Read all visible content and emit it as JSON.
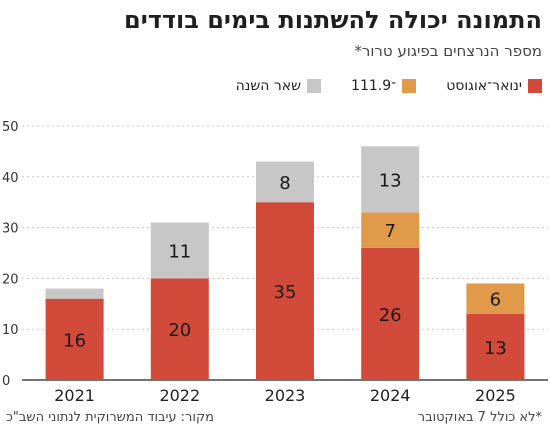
{
  "header": {
    "title": "התמונה יכולה להשתנות בימים בודדים",
    "subtitle": "מספר הנרצחים בפיגוע טרור*"
  },
  "footer": {
    "source": "מקור: עיבוד המשרוקית לנתוני השב\"כ",
    "note": "*לא כולל 7 באוקטובר"
  },
  "colors": {
    "jan_aug": "#d24a3a",
    "sep_nov": "#e09a4a",
    "rest": "#c7c7c7"
  },
  "chart_data": {
    "type": "bar",
    "stacked": true,
    "categories": [
      "2021",
      "2022",
      "2023",
      "2024",
      "2025"
    ],
    "series": [
      {
        "name": "ינואר־אוגוסט",
        "values": [
          16,
          20,
          35,
          26,
          13
        ]
      },
      {
        "name": "1־11.9",
        "values": [
          0,
          0,
          0,
          7,
          6
        ]
      },
      {
        "name": "שאר השנה",
        "values": [
          2,
          11,
          8,
          13,
          0
        ]
      }
    ],
    "series_labels": [
      [
        "16",
        "20",
        "35",
        "26",
        "13"
      ],
      [
        "",
        "",
        "",
        "7",
        "6"
      ],
      [
        "",
        "11",
        "8",
        "13",
        ""
      ]
    ],
    "ylim": [
      0,
      50
    ],
    "yticks": [
      0,
      10,
      20,
      30,
      40,
      50
    ],
    "grid": true,
    "legend": "top-right"
  }
}
